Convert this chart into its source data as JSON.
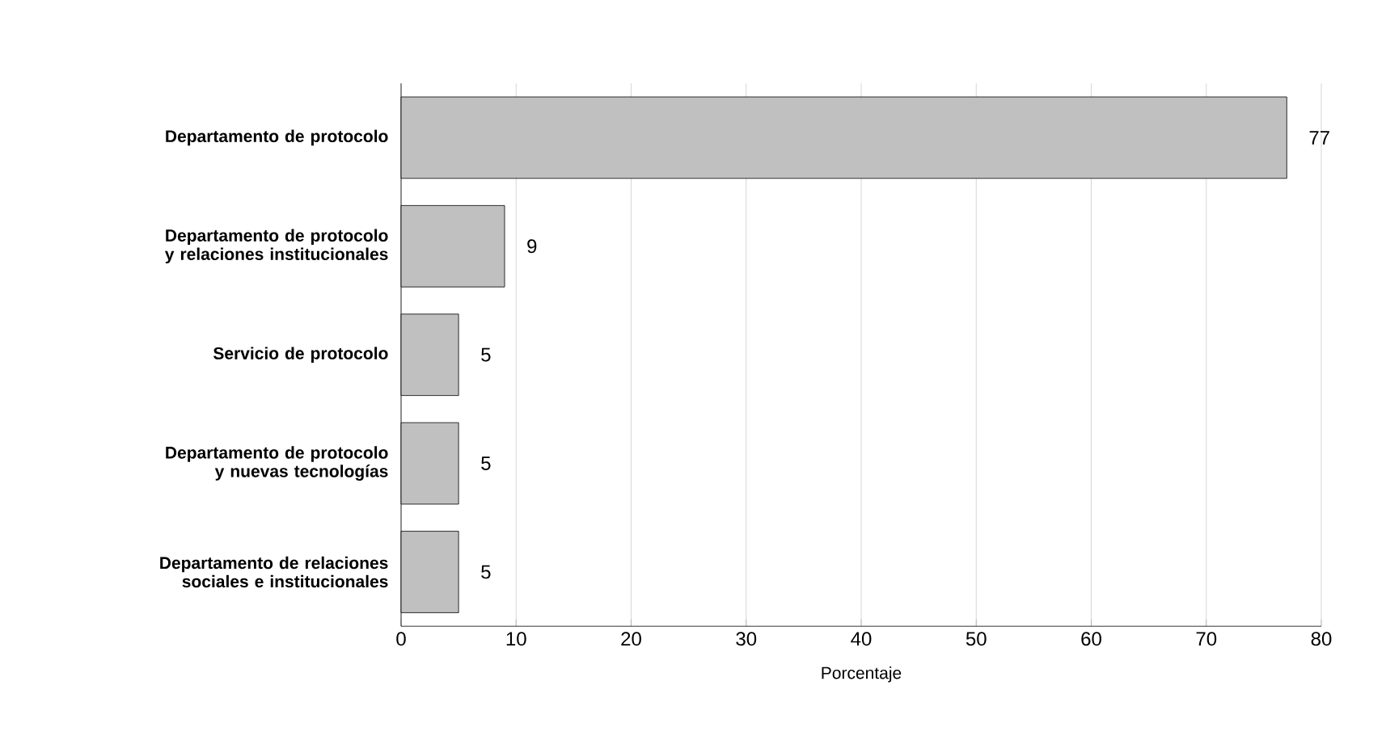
{
  "chart_data": {
    "type": "bar",
    "orientation": "horizontal",
    "xlabel": "Porcentaje",
    "categories": [
      "Departamento de protocolo",
      "Departamento de protocolo y relaciones institucionales",
      "Servicio de protocolo",
      "Departamento de protocolo y nuevas tecnologías",
      "Departamento de relaciones sociales e institucionales"
    ],
    "values": [
      77,
      9,
      5,
      5,
      5
    ],
    "color": "#c0c0c0",
    "xlim": [
      0,
      80
    ],
    "xticks": [
      0,
      10,
      20,
      30,
      40,
      50,
      60,
      70,
      80
    ],
    "grid": "x",
    "data_labels": true
  }
}
